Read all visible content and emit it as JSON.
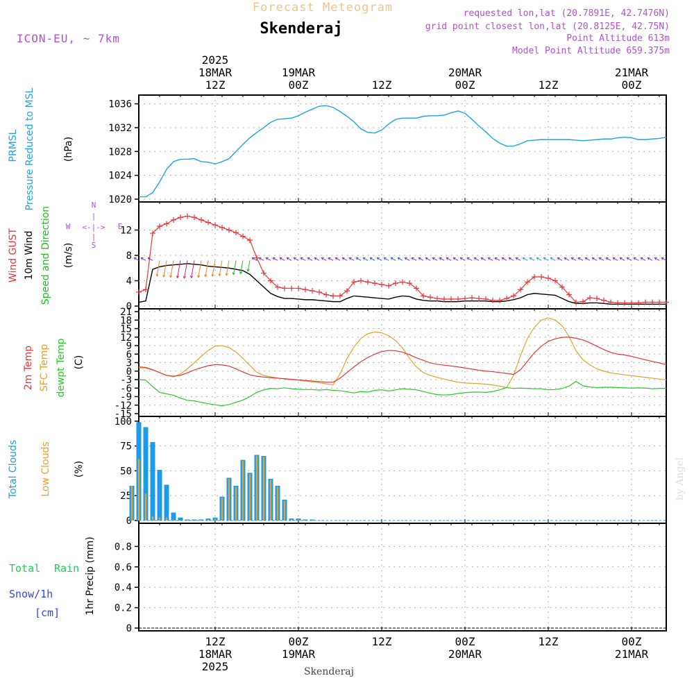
{
  "colors": {
    "pressure": "#1ba4e8",
    "gust": "#e8363a",
    "wind": "#000000",
    "wind_dir": "#22bb22",
    "temp": "#e8363a",
    "sfc_temp": "#e3a22a",
    "dewpt": "#22cc22",
    "total_clouds": "#1e9be8",
    "low_clouds": "#e3a22a",
    "rain": "#22cc55",
    "snow": "#3344ee",
    "purple": "#b050d8",
    "title_orange": "#f0c48a",
    "grid": "#9a9a9a"
  },
  "header": {
    "forecast_title": "Forecast Meteogram",
    "location": "Skenderaj",
    "model": "ICON-EU, ~ 7km",
    "requested": "requested lon,lat (20.7891E, 42.7476N)",
    "grid_point": "grid point closest lon,lat (20.8125E, 42.75N)",
    "point_alt": "Point Altitude 613m",
    "model_alt": "Model Point Altitude 659.375m"
  },
  "time_axis": {
    "top_labels": [
      {
        "t": 0,
        "lines": [
          "2025",
          "18MAR",
          "12Z"
        ]
      },
      {
        "t": 12,
        "lines": [
          "19MAR",
          "00Z"
        ]
      },
      {
        "t": 24,
        "lines": [
          "12Z"
        ]
      },
      {
        "t": 36,
        "lines": [
          "20MAR",
          "00Z"
        ]
      },
      {
        "t": 48,
        "lines": [
          "12Z"
        ]
      },
      {
        "t": 60,
        "lines": [
          "21MAR",
          "00Z"
        ]
      }
    ],
    "bottom_labels": [
      {
        "t": 0,
        "lines": [
          "12Z",
          "18MAR",
          "2025"
        ]
      },
      {
        "t": 12,
        "lines": [
          "00Z",
          "19MAR"
        ]
      },
      {
        "t": 24,
        "lines": [
          "12Z"
        ]
      },
      {
        "t": 36,
        "lines": [
          "00Z",
          "20MAR"
        ]
      },
      {
        "t": 48,
        "lines": [
          "12Z"
        ]
      },
      {
        "t": 60,
        "lines": [
          "00Z",
          "21MAR"
        ]
      }
    ],
    "xlim_hours": [
      -11,
      65
    ]
  },
  "footer": {
    "location": "Skenderaj",
    "credit": "by Angel"
  },
  "chart_data": [
    {
      "type": "line",
      "title": "PRMSL Pressure Reduced to MSL",
      "labels": [
        "PRMSL",
        "Pressure Reduced to MSL"
      ],
      "ylabel": "(hPa)",
      "ylim": [
        1020,
        1037
      ],
      "yticks": [
        1020,
        1024,
        1028,
        1032,
        1036
      ],
      "ytick_labels": [
        "1020",
        "1024",
        "1028",
        "1032",
        "1036"
      ],
      "x": [
        -11,
        -10,
        -9,
        -8,
        -7,
        -6,
        -5,
        -4,
        -3,
        -2,
        -1,
        0,
        1,
        2,
        3,
        4,
        5,
        6,
        7,
        8,
        9,
        10,
        11,
        12,
        13,
        14,
        15,
        16,
        17,
        18,
        19,
        20,
        21,
        22,
        23,
        24,
        25,
        26,
        27,
        28,
        29,
        30,
        31,
        32,
        33,
        34,
        35,
        36,
        37,
        38,
        39,
        40,
        41,
        42,
        43,
        44,
        45,
        46,
        47,
        48,
        49,
        50,
        51,
        52,
        53,
        54,
        55,
        56,
        57,
        58,
        59,
        60,
        61,
        62,
        63,
        64,
        65
      ],
      "series": [
        {
          "name": "PRMSL",
          "values": [
            1020.4,
            1020.4,
            1021.1,
            1022.9,
            1025.0,
            1026.3,
            1026.7,
            1026.7,
            1026.8,
            1026.3,
            1026.2,
            1025.9,
            1026.3,
            1026.8,
            1028.0,
            1029.2,
            1030.3,
            1031.2,
            1032.0,
            1032.9,
            1033.4,
            1033.5,
            1033.6,
            1034.0,
            1034.6,
            1035.1,
            1035.6,
            1035.7,
            1035.4,
            1034.7,
            1033.9,
            1033.0,
            1031.8,
            1031.2,
            1031.1,
            1031.6,
            1032.6,
            1033.4,
            1033.6,
            1033.6,
            1033.6,
            1033.9,
            1034.0,
            1034.0,
            1034.1,
            1034.5,
            1034.8,
            1034.4,
            1033.4,
            1032.3,
            1031.3,
            1030.2,
            1029.4,
            1028.9,
            1028.9,
            1029.3,
            1029.8,
            1029.9,
            1030.0,
            1030.0,
            1030.0,
            1030.0,
            1030.0,
            1029.9,
            1029.8,
            1029.9,
            1030.0,
            1030.1,
            1030.1,
            1030.3,
            1030.4,
            1030.3,
            1030.0,
            1030.0,
            1030.1,
            1030.2,
            1030.4
          ]
        }
      ]
    },
    {
      "type": "line",
      "title": "Wind GUST, 10m Wind Speed and Direction",
      "labels": [
        "Wind GUST",
        "10m Wind",
        "Speed and Direction"
      ],
      "ylabel": "(m/s)",
      "compass": {
        "n": "N",
        "s": "S",
        "w": "W",
        "e": "E",
        "mid": "<-|->"
      },
      "ylim": [
        0,
        16
      ],
      "yticks": [
        0,
        4,
        8,
        12
      ],
      "ytick_labels": [
        "0",
        "4",
        "8",
        "12"
      ],
      "x": [
        -11,
        -10,
        -9,
        -8,
        -7,
        -6,
        -5,
        -4,
        -3,
        -2,
        -1,
        0,
        1,
        2,
        3,
        4,
        5,
        6,
        7,
        8,
        9,
        10,
        11,
        12,
        13,
        14,
        15,
        16,
        17,
        18,
        19,
        20,
        21,
        22,
        23,
        24,
        25,
        26,
        27,
        28,
        29,
        30,
        31,
        32,
        33,
        34,
        35,
        36,
        37,
        38,
        39,
        40,
        41,
        42,
        43,
        44,
        45,
        46,
        47,
        48,
        49,
        50,
        51,
        52,
        53,
        54,
        55,
        56,
        57,
        58,
        59,
        60,
        61,
        62,
        63,
        64,
        65
      ],
      "series": [
        {
          "name": "Wind GUST",
          "values": [
            2.2,
            2.6,
            11.5,
            12.6,
            13.0,
            13.6,
            14.0,
            14.2,
            14.0,
            13.6,
            13.2,
            12.8,
            12.4,
            12.0,
            11.6,
            11.0,
            10.4,
            7.6,
            5.2,
            4.0,
            3.0,
            2.8,
            2.8,
            2.8,
            2.6,
            2.4,
            2.2,
            1.8,
            1.6,
            1.6,
            2.4,
            3.8,
            4.0,
            3.8,
            3.6,
            3.4,
            3.2,
            3.6,
            3.8,
            3.6,
            2.8,
            1.6,
            1.4,
            1.2,
            1.1,
            1.1,
            1.1,
            1.2,
            1.3,
            1.2,
            1.1,
            0.9,
            0.9,
            1.2,
            1.6,
            2.6,
            3.8,
            4.6,
            4.6,
            4.4,
            4.0,
            3.0,
            1.8,
            0.6,
            0.7,
            1.3,
            1.2,
            0.9,
            0.6,
            0.5,
            0.5,
            0.5,
            0.5,
            0.6,
            0.6,
            0.6,
            0.6
          ]
        },
        {
          "name": "10m Wind",
          "values": [
            0.6,
            0.8,
            5.8,
            6.2,
            6.4,
            6.5,
            6.6,
            6.7,
            6.6,
            6.5,
            6.3,
            6.2,
            6.1,
            6.0,
            5.8,
            5.6,
            5.0,
            4.0,
            3.0,
            2.0,
            1.5,
            1.2,
            1.2,
            1.1,
            1.0,
            1.0,
            0.9,
            0.8,
            0.7,
            0.7,
            1.2,
            1.6,
            1.5,
            1.4,
            1.3,
            1.2,
            1.1,
            1.4,
            1.6,
            1.5,
            1.1,
            0.9,
            0.8,
            0.8,
            0.7,
            0.7,
            0.7,
            0.8,
            0.8,
            0.8,
            0.8,
            0.7,
            0.7,
            0.8,
            1.0,
            1.3,
            1.8,
            2.0,
            1.9,
            1.8,
            1.7,
            1.2,
            0.7,
            0.4,
            0.4,
            0.5,
            0.5,
            0.4,
            0.3,
            0.3,
            0.3,
            0.3,
            0.3,
            0.3,
            0.3,
            0.3,
            0.3
          ]
        }
      ]
    },
    {
      "type": "line",
      "title": "2m Temp, SFC Temp, dewpt Temp",
      "labels": [
        "2m Temp",
        "SFC Temp",
        "dewpt Temp"
      ],
      "ylabel": "(C)",
      "ylim": [
        -15,
        21
      ],
      "yticks": [
        -15,
        -12,
        -9,
        -6,
        -3,
        0,
        3,
        6,
        9,
        12,
        15,
        18,
        21
      ],
      "ytick_labels": [
        "-15",
        "-12",
        "-9",
        "-6",
        "-3",
        "0",
        "3",
        "6",
        "9",
        "12",
        "15",
        "18",
        "21"
      ],
      "x": [
        -11,
        -10,
        -9,
        -8,
        -7,
        -6,
        -5,
        -4,
        -3,
        -2,
        -1,
        0,
        1,
        2,
        3,
        4,
        5,
        6,
        7,
        8,
        9,
        10,
        11,
        12,
        13,
        14,
        15,
        16,
        17,
        18,
        19,
        20,
        21,
        22,
        23,
        24,
        25,
        26,
        27,
        28,
        29,
        30,
        31,
        32,
        33,
        34,
        35,
        36,
        37,
        38,
        39,
        40,
        41,
        42,
        43,
        44,
        45,
        46,
        47,
        48,
        49,
        50,
        51,
        52,
        53,
        54,
        55,
        56,
        57,
        58,
        59,
        60,
        61,
        62,
        63,
        64,
        65
      ],
      "series": [
        {
          "name": "2m Temp",
          "values": [
            1.5,
            1.3,
            0.5,
            -0.5,
            -1.5,
            -1.8,
            -1.5,
            -0.6,
            0.4,
            1.2,
            1.9,
            2.3,
            2.2,
            1.8,
            0.8,
            -0.3,
            -1.3,
            -1.8,
            -2.1,
            -2.3,
            -2.5,
            -2.7,
            -2.9,
            -3.1,
            -3.3,
            -3.5,
            -3.7,
            -3.9,
            -3.9,
            -2.5,
            -0.5,
            1.5,
            3.3,
            4.8,
            6.0,
            6.9,
            7.3,
            7.2,
            6.7,
            5.8,
            4.7,
            3.8,
            2.9,
            2.4,
            2.1,
            1.8,
            1.5,
            1.1,
            0.7,
            0.3,
            0.0,
            -0.2,
            -0.5,
            -0.8,
            -1.2,
            0.5,
            3.5,
            6.5,
            8.8,
            10.5,
            11.4,
            11.9,
            12.0,
            11.6,
            11.0,
            10.0,
            8.8,
            7.6,
            6.6,
            6.0,
            5.7,
            5.2,
            4.6,
            4.0,
            3.4,
            2.9,
            2.3
          ]
        },
        {
          "name": "SFC Temp",
          "values": [
            1.2,
            1.1,
            0.4,
            -0.5,
            -1.5,
            -2.0,
            -1.0,
            0.8,
            3.0,
            5.2,
            7.3,
            8.8,
            9.0,
            8.3,
            6.7,
            4.5,
            2.0,
            -0.4,
            -1.5,
            -2.0,
            -2.4,
            -2.8,
            -3.0,
            -3.2,
            -3.5,
            -3.8,
            -4.1,
            -4.5,
            -4.8,
            -1.0,
            4.5,
            8.5,
            11.5,
            13.2,
            13.8,
            13.5,
            12.5,
            10.8,
            8.2,
            4.5,
            1.5,
            -0.5,
            -1.5,
            -2.2,
            -2.8,
            -3.4,
            -3.9,
            -4.2,
            -4.3,
            -4.4,
            -4.6,
            -4.9,
            -5.3,
            -5.8,
            -1.5,
            5.5,
            11.5,
            15.5,
            18.0,
            18.8,
            18.0,
            16.0,
            12.2,
            7.2,
            4.0,
            2.2,
            0.8,
            0.0,
            -0.6,
            -1.0,
            -1.3,
            -1.6,
            -1.9,
            -2.2,
            -2.5,
            -2.8,
            -3.1
          ]
        },
        {
          "name": "dewpt Temp",
          "values": [
            -3.0,
            -3.2,
            -5.5,
            -7.5,
            -8.0,
            -8.5,
            -9.5,
            -10.3,
            -10.5,
            -11.0,
            -11.5,
            -11.9,
            -12.2,
            -11.8,
            -11.0,
            -10.2,
            -9.0,
            -7.5,
            -6.6,
            -6.1,
            -6.2,
            -5.9,
            -6.2,
            -6.4,
            -6.5,
            -6.5,
            -6.7,
            -6.5,
            -6.8,
            -6.9,
            -7.3,
            -7.7,
            -7.2,
            -7.4,
            -6.8,
            -6.6,
            -7.0,
            -6.6,
            -6.2,
            -6.4,
            -6.6,
            -7.2,
            -7.8,
            -8.3,
            -8.4,
            -8.3,
            -7.9,
            -7.6,
            -7.4,
            -7.4,
            -7.5,
            -7.2,
            -6.6,
            -5.8,
            -6.1,
            -6.0,
            -6.1,
            -6.2,
            -6.2,
            -6.6,
            -6.5,
            -6.1,
            -5.3,
            -3.6,
            -5.2,
            -5.6,
            -5.8,
            -5.7,
            -5.7,
            -5.8,
            -5.9,
            -6.0,
            -5.9,
            -6.0,
            -6.2,
            -6.1,
            -6.1
          ]
        }
      ]
    },
    {
      "type": "bar",
      "title": "Total Clouds, Low Clouds",
      "labels": [
        "Total Clouds",
        "Low Clouds"
      ],
      "ylabel": "(%)",
      "ylim": [
        0,
        102
      ],
      "yticks": [
        0,
        25,
        50,
        75,
        100
      ],
      "ytick_labels": [
        "0",
        "25",
        "50",
        "75",
        "100"
      ],
      "x": [
        -12,
        -11,
        -10,
        -9,
        -8,
        -7,
        -6,
        -5,
        -4,
        -3,
        -2,
        -1,
        0,
        1,
        2,
        3,
        4,
        5,
        6,
        7,
        8,
        9,
        10,
        11,
        12,
        13,
        14,
        15,
        16
      ],
      "series": [
        {
          "name": "Total Clouds",
          "values": [
            35,
            99,
            94,
            79,
            51,
            36,
            8,
            3,
            1,
            1,
            1,
            2,
            3,
            24,
            43,
            35,
            61,
            48,
            66,
            65,
            42,
            35,
            21,
            2,
            2,
            1,
            1,
            0,
            0
          ]
        },
        {
          "name": "Low Clouds",
          "values": [
            35,
            62,
            27,
            4,
            3,
            3,
            1,
            0,
            0,
            0,
            0,
            1,
            2,
            23,
            42,
            34,
            60,
            47,
            65,
            64,
            41,
            34,
            20,
            1,
            1,
            0,
            0,
            0,
            0
          ]
        }
      ]
    },
    {
      "type": "bar",
      "title": "Total Rain, Snow/1h",
      "labels": [
        "Total",
        "Rain",
        "Snow/1h",
        "[cm]"
      ],
      "ylabel": "1hr Precip (mm)",
      "ylim": [
        0,
        1.0
      ],
      "yticks": [
        0,
        0.2,
        0.4,
        0.6,
        0.8
      ],
      "ytick_labels": [
        "0",
        "0.2",
        "0.4",
        "0.6",
        "0.8"
      ],
      "x": [],
      "series": [
        {
          "name": "Total Rain",
          "values": []
        },
        {
          "name": "Snow/1h",
          "values": []
        }
      ]
    }
  ]
}
